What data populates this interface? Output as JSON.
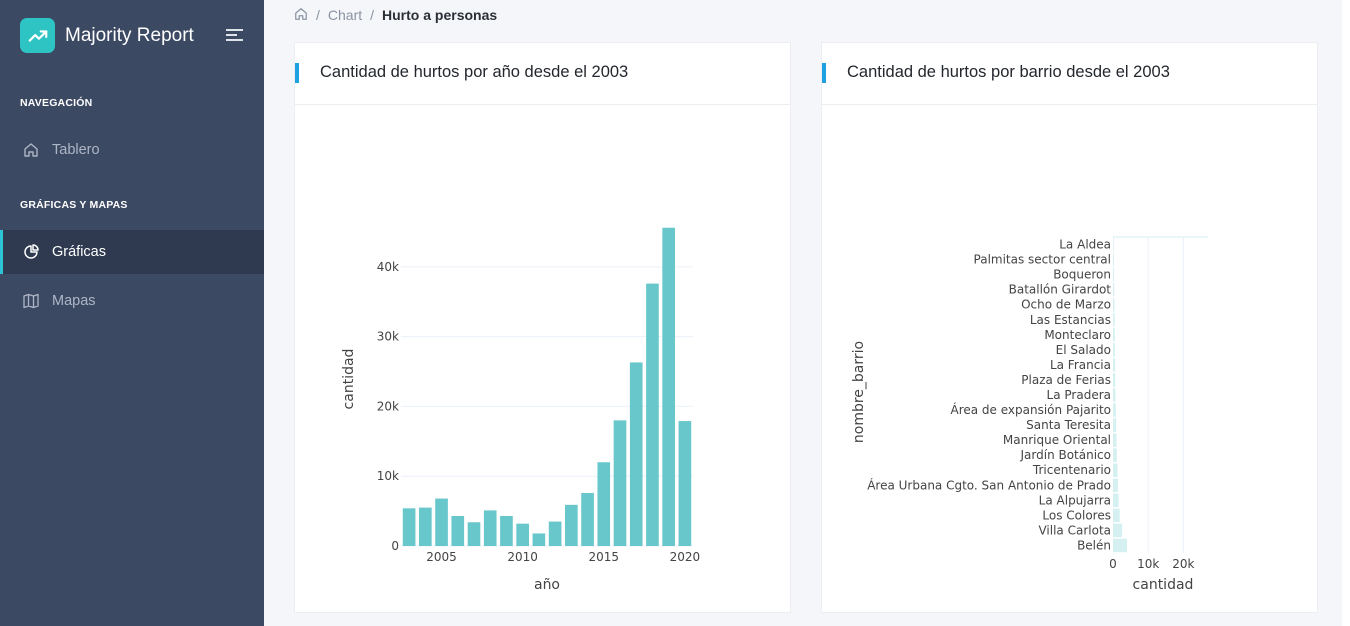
{
  "app": {
    "name": "Majority Report"
  },
  "sidebar": {
    "sections": [
      {
        "title": "NAVEGACIÓN",
        "items": [
          {
            "label": "Tablero",
            "icon": "home-icon",
            "active": false
          }
        ]
      },
      {
        "title": "GRÁFICAS Y MAPAS",
        "items": [
          {
            "label": "Gráficas",
            "icon": "pie-chart-icon",
            "active": true
          },
          {
            "label": "Mapas",
            "icon": "map-icon",
            "active": false
          }
        ]
      }
    ]
  },
  "breadcrumb": {
    "items": [
      "Chart",
      "Hurto a personas"
    ]
  },
  "cards": [
    {
      "title": "Cantidad de hurtos por año desde el 2003"
    },
    {
      "title": "Cantidad de hurtos por barrio desde el 2003"
    }
  ],
  "colors": {
    "accent": "#2ec4c4",
    "bar": "#67c7cb",
    "sidebar": "#3c4963",
    "header_accent": "#1da1e0"
  },
  "chart_data": [
    {
      "type": "bar",
      "xlabel": "año",
      "ylabel": "cantidad",
      "x": [
        2003,
        2004,
        2005,
        2006,
        2007,
        2008,
        2009,
        2010,
        2011,
        2012,
        2013,
        2014,
        2015,
        2016,
        2017,
        2018,
        2019,
        2020
      ],
      "values": [
        5400,
        5500,
        6800,
        4300,
        3400,
        5100,
        4300,
        3200,
        1800,
        3500,
        5900,
        7600,
        12000,
        18000,
        26300,
        37600,
        45600,
        17900
      ],
      "x_ticks": [
        "2005",
        "2010",
        "2015",
        "2020"
      ],
      "y_ticks": [
        "0",
        "10k",
        "20k",
        "30k",
        "40k"
      ],
      "ylim": [
        0,
        48000
      ],
      "grid": true
    },
    {
      "type": "bar",
      "orientation": "horizontal",
      "xlabel": "cantidad",
      "ylabel": "nombre_barrio",
      "categories": [
        "Belén",
        "Villa Carlota",
        "Los Colores",
        "La Alpujarra",
        "Área Urbana Cgto. San Antonio de Prado",
        "Tricentenario",
        "Jardín Botánico",
        "Manrique Oriental",
        "Santa Teresita",
        "Área de expansión Pajarito",
        "La Pradera",
        "Plaza de Ferias",
        "La Francia",
        "El Salado",
        "Monteclaro",
        "Las Estancias",
        "Ocho de Marzo",
        "Batallón Girardot",
        "Boqueron",
        "Palmitas sector central",
        "La Aldea"
      ],
      "values": [
        4000,
        2600,
        1900,
        1600,
        1400,
        1300,
        1100,
        1000,
        900,
        800,
        700,
        650,
        600,
        550,
        500,
        450,
        400,
        350,
        300,
        250,
        200
      ],
      "x_ticks": [
        "0",
        "10k",
        "20k"
      ],
      "xlim": [
        0,
        27000
      ],
      "grid": true
    }
  ]
}
